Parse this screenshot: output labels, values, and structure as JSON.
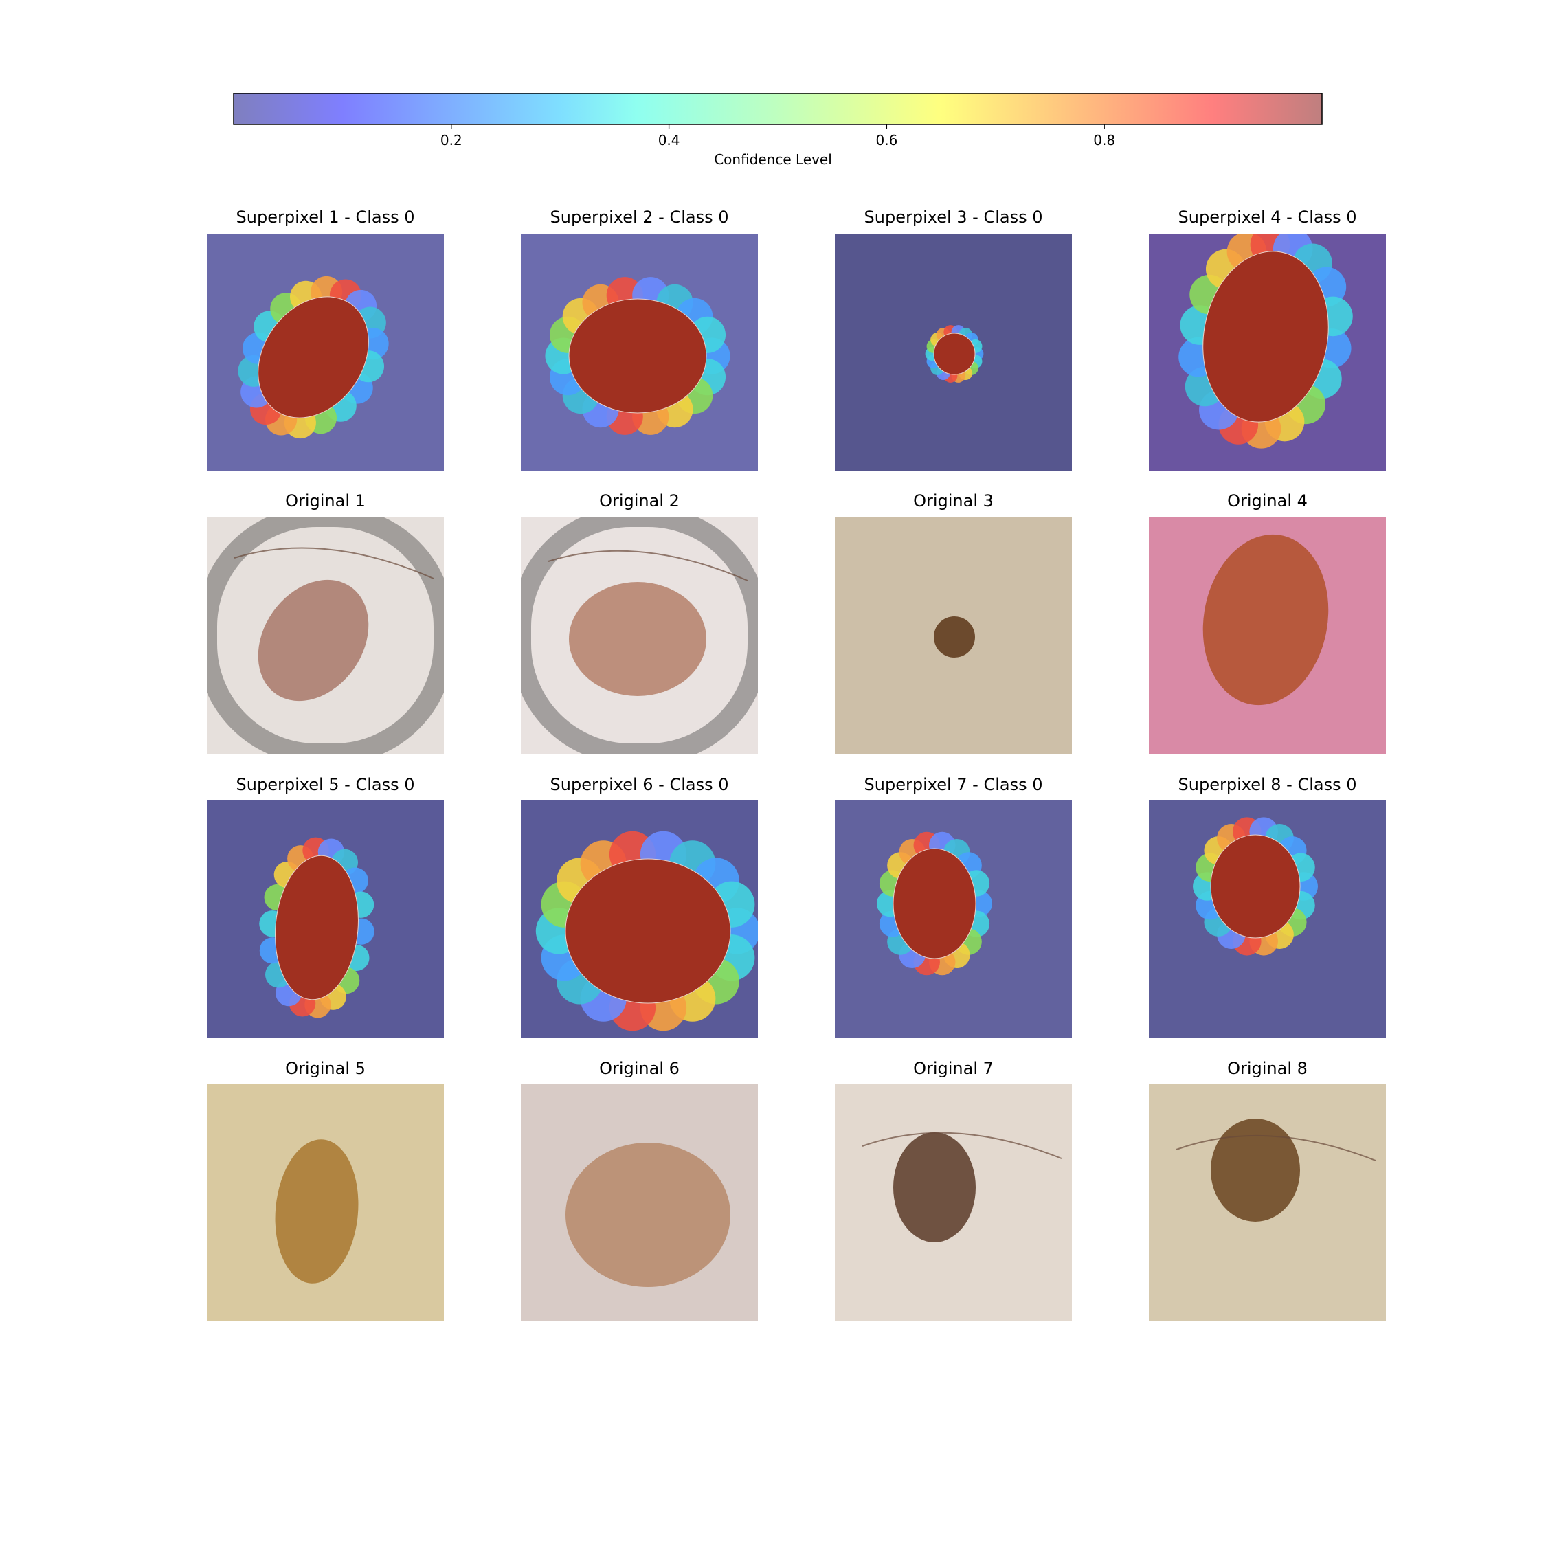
{
  "colorbar": {
    "label": "Confidence Level",
    "ticks": [
      "0.2",
      "0.4",
      "0.6",
      "0.8"
    ],
    "tick_values": [
      0.2,
      0.4,
      0.6,
      0.8
    ],
    "range": [
      0.0,
      1.0
    ],
    "colormap": "jet (semi-transparent)"
  },
  "rows": [
    {
      "kind": "superpixel",
      "panels": [
        {
          "title": "Superpixel 1 - Class 0"
        },
        {
          "title": "Superpixel 2 - Class 0"
        },
        {
          "title": "Superpixel 3 - Class 0"
        },
        {
          "title": "Superpixel 4 - Class 0"
        }
      ]
    },
    {
      "kind": "original",
      "panels": [
        {
          "title": "Original 1"
        },
        {
          "title": "Original 2"
        },
        {
          "title": "Original 3"
        },
        {
          "title": "Original 4"
        }
      ]
    },
    {
      "kind": "superpixel",
      "panels": [
        {
          "title": "Superpixel 5 - Class 0"
        },
        {
          "title": "Superpixel 6 - Class 0"
        },
        {
          "title": "Superpixel 7 - Class 0"
        },
        {
          "title": "Superpixel 8 - Class 0"
        }
      ]
    },
    {
      "kind": "original",
      "panels": [
        {
          "title": "Original 5"
        },
        {
          "title": "Original 6"
        },
        {
          "title": "Original 7"
        },
        {
          "title": "Original 8"
        }
      ]
    }
  ],
  "colors": {
    "overlay_background": "#5f5fa8",
    "lesion_overlay": "#a03020",
    "skin_light": "#e9e1dc",
    "skin_pink": "#d98aa6",
    "skin_tan": "#cdbfa8"
  }
}
